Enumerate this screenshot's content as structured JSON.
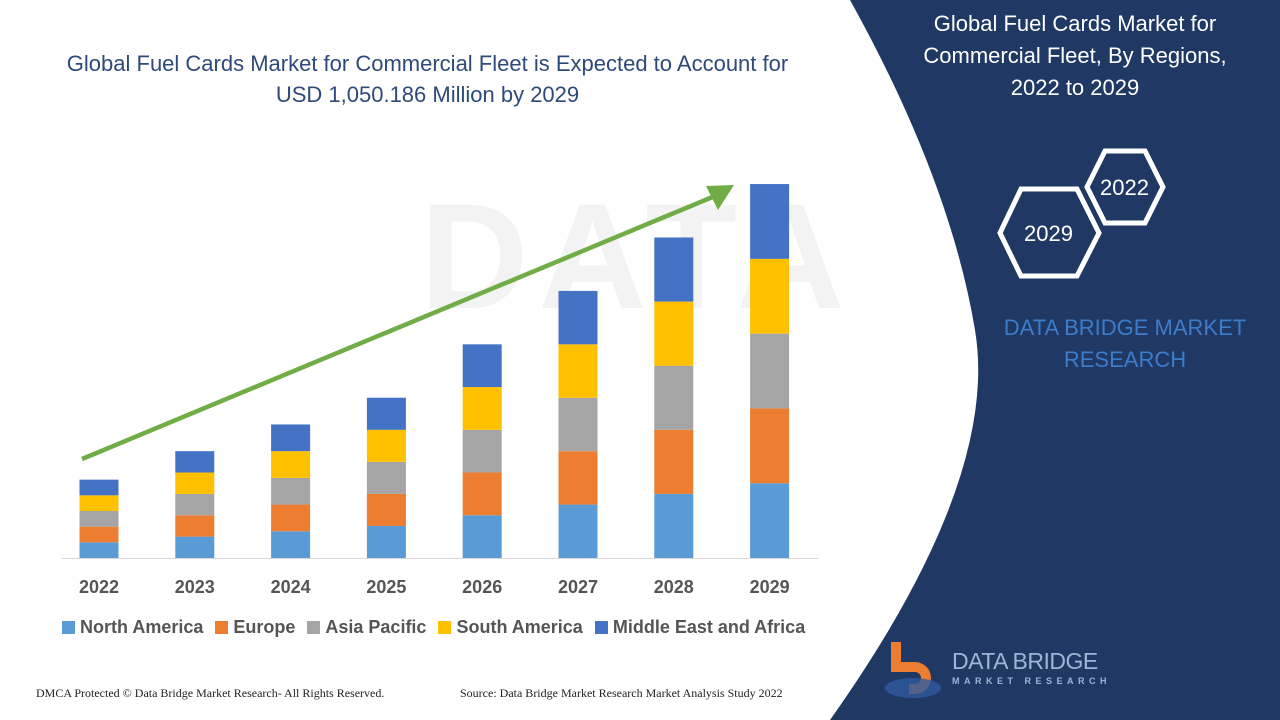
{
  "title": "Global Fuel Cards Market for Commercial Fleet is Expected to Account for USD 1,050.186 Million by 2029",
  "side_panel": {
    "title": "Global Fuel Cards Market for Commercial Fleet, By Regions, 2022 to 2029",
    "hex_start": "2022",
    "hex_end": "2029",
    "brand": "DATA BRIDGE MARKET RESEARCH",
    "logo_text": "DATA BRIDGE",
    "logo_sub": "MARKET RESEARCH",
    "color": "#1f3864"
  },
  "footer": {
    "left": "DMCA Protected © Data Bridge Market Research- All Rights Reserved.",
    "right": "Source: Data Bridge Market Research Market Analysis Study 2022"
  },
  "chart_data": {
    "type": "bar",
    "stacked": true,
    "title": "Global Fuel Cards Market for Commercial Fleet is Expected to Account for USD 1,050.186 Million by 2029",
    "categories": [
      "2022",
      "2023",
      "2024",
      "2025",
      "2026",
      "2027",
      "2028",
      "2029"
    ],
    "series": [
      {
        "name": "North America",
        "color": "#5b9bd5",
        "values": [
          44,
          60,
          75,
          90,
          120,
          150,
          180,
          210
        ]
      },
      {
        "name": "Europe",
        "color": "#ed7d31",
        "values": [
          44,
          60,
          75,
          90,
          120,
          150,
          180,
          210
        ]
      },
      {
        "name": "Asia Pacific",
        "color": "#a5a5a5",
        "values": [
          44,
          60,
          75,
          90,
          120,
          150,
          180,
          210
        ]
      },
      {
        "name": "South America",
        "color": "#ffc000",
        "values": [
          44,
          60,
          75,
          90,
          120,
          150,
          180,
          210
        ]
      },
      {
        "name": "Middle East and Africa",
        "color": "#4472c4",
        "values": [
          44,
          60,
          75,
          90,
          120,
          150,
          180,
          210
        ]
      }
    ],
    "ylim": [
      0,
      1050.186
    ],
    "y_axis_visible": false,
    "grid": false,
    "legend": "bottom",
    "trend_arrow_color": "#70ad47"
  }
}
